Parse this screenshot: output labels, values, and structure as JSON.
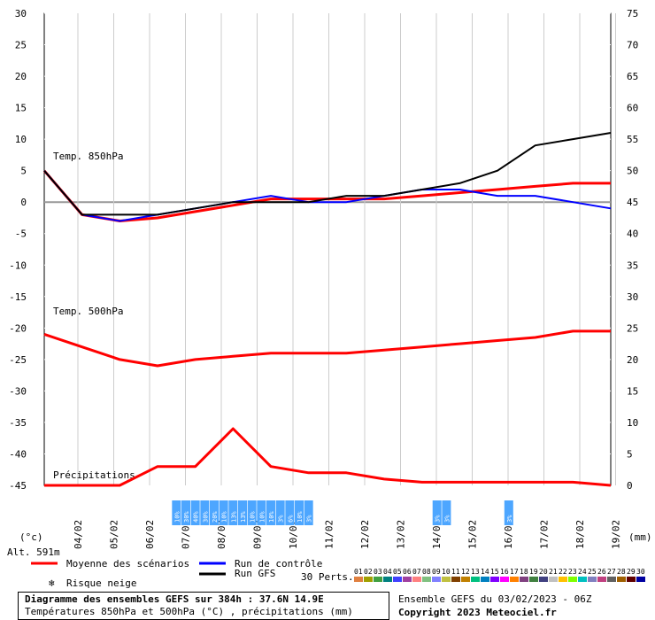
{
  "chart_data": {
    "type": "line",
    "title": "Diagramme des ensembles GEFS sur 384h : 37.6N 14.9E",
    "subtitle": "Températures 850hPa et 500hPa (°C) , précipitations (mm)",
    "run_info": "Ensemble GEFS du 03/02/2023 - 06Z",
    "copyright": "Copyright 2023 Meteociel.fr",
    "altitude": "Alt. 591m",
    "left_unit": "(°c)",
    "right_unit": "(mm)",
    "left_ticks": [
      "30",
      "25",
      "20",
      "15",
      "10",
      "5",
      "0",
      "-5",
      "-10",
      "-15",
      "-20",
      "-25",
      "-30",
      "-35",
      "-40",
      "-45"
    ],
    "right_ticks": [
      "75",
      "70",
      "65",
      "60",
      "55",
      "50",
      "45",
      "40",
      "35",
      "30",
      "25",
      "20",
      "15",
      "10",
      "5",
      "0"
    ],
    "ylim_temp": [
      -45,
      30
    ],
    "ylim_precip": [
      0,
      75
    ],
    "x_labels": [
      "04/02",
      "05/02",
      "06/02",
      "07/02",
      "08/02",
      "09/02",
      "10/02",
      "11/02",
      "12/02",
      "13/02",
      "14/02",
      "15/02",
      "16/02",
      "17/02",
      "18/02",
      "19/02"
    ],
    "section_labels": {
      "t850": "Temp. 850hPa",
      "t500": "Temp. 500hPa",
      "precip": "Précipitations"
    },
    "legend": {
      "mean": "Moyenne des scénarios",
      "control": "Run de contrôle",
      "gfs": "Run GFS",
      "snow": "Risque neige",
      "perts": "30 Perts.",
      "colors": {
        "mean": "#ff0000",
        "control": "#0000ff",
        "gfs": "#000000"
      }
    },
    "perturbation_numbers": [
      "01",
      "02",
      "03",
      "04",
      "05",
      "06",
      "07",
      "08",
      "09",
      "10",
      "11",
      "12",
      "13",
      "14",
      "15",
      "16",
      "17",
      "18",
      "19",
      "20",
      "21",
      "22",
      "23",
      "24",
      "25",
      "26",
      "27",
      "28",
      "29",
      "30"
    ],
    "perturbation_colors": [
      "#e08040",
      "#a0a000",
      "#40a040",
      "#008080",
      "#4040ff",
      "#a040a0",
      "#ff8080",
      "#80c080",
      "#8080ff",
      "#c0c040",
      "#804000",
      "#c08000",
      "#00c080",
      "#0080c0",
      "#8000ff",
      "#ff00ff",
      "#ff8000",
      "#804080",
      "#408040",
      "#404080",
      "#c0c0c0",
      "#ffc000",
      "#80ff00",
      "#00c0c0",
      "#8080c0",
      "#c04080",
      "#606060",
      "#a06000",
      "#600000",
      "#0000a0"
    ],
    "series": [
      {
        "name": "Temp. 850hPa - Moyenne des scénarios",
        "unit": "°C",
        "x": [
          0,
          1,
          2,
          3,
          4,
          5,
          6,
          7,
          8,
          9,
          10,
          11,
          12,
          13,
          14,
          15
        ],
        "values": [
          5,
          -2,
          -3,
          -2.5,
          -1.5,
          -0.5,
          0.5,
          0.5,
          0.5,
          0.5,
          1,
          1.5,
          2,
          2.5,
          3,
          3
        ]
      },
      {
        "name": "Temp. 500hPa - Moyenne des scénarios",
        "unit": "°C",
        "x": [
          0,
          1,
          2,
          3,
          4,
          5,
          6,
          7,
          8,
          9,
          10,
          11,
          12,
          13,
          14,
          15
        ],
        "values": [
          -21,
          -23,
          -25,
          -26,
          -25,
          -24.5,
          -24,
          -24,
          -24,
          -23.5,
          -23,
          -22.5,
          -22,
          -21.5,
          -20.5,
          -20.5
        ]
      },
      {
        "name": "Précipitations - Moyenne des scénarios",
        "unit": "mm",
        "x": [
          0,
          1,
          2,
          3,
          4,
          5,
          6,
          7,
          8,
          9,
          10,
          11,
          12,
          13,
          14,
          15
        ],
        "values": [
          0,
          0,
          0,
          3,
          3,
          9,
          3,
          2,
          2,
          1,
          0.5,
          0.5,
          0.5,
          0.5,
          0.5,
          0
        ]
      },
      {
        "name": "Temp. 850hPa - Run de contrôle",
        "unit": "°C",
        "x": [
          0,
          1,
          2,
          3,
          4,
          5,
          6,
          7,
          8,
          9,
          10,
          11,
          12,
          13,
          14,
          15
        ],
        "values": [
          5,
          -2,
          -3,
          -2,
          -1,
          0,
          1,
          0,
          0,
          1,
          2,
          2,
          1,
          1,
          0,
          -1
        ]
      },
      {
        "name": "Temp. 850hPa - Run GFS",
        "unit": "°C",
        "x": [
          0,
          1,
          2,
          3,
          4,
          5,
          6,
          7,
          8,
          9,
          10,
          11,
          12,
          13,
          14,
          15
        ],
        "values": [
          5,
          -2,
          -2,
          -2,
          -1,
          0,
          0,
          0,
          1,
          1,
          2,
          3,
          5,
          9,
          10,
          11
        ]
      }
    ],
    "snow_risk": [
      {
        "x": 3.5,
        "text": "10%"
      },
      {
        "x": 3.75,
        "text": "30%"
      },
      {
        "x": 4.0,
        "text": "40%"
      },
      {
        "x": 4.25,
        "text": "30%"
      },
      {
        "x": 4.5,
        "text": "20%"
      },
      {
        "x": 4.75,
        "text": "10%"
      },
      {
        "x": 5.0,
        "text": "13%"
      },
      {
        "x": 5.25,
        "text": "13%"
      },
      {
        "x": 5.5,
        "text": "10%"
      },
      {
        "x": 5.75,
        "text": "10%"
      },
      {
        "x": 6.0,
        "text": "10%"
      },
      {
        "x": 6.25,
        "text": "3%"
      },
      {
        "x": 6.5,
        "text": "6%"
      },
      {
        "x": 6.75,
        "text": "10%"
      },
      {
        "x": 7.0,
        "text": "3%"
      },
      {
        "x": 10.4,
        "text": "3%"
      },
      {
        "x": 10.65,
        "text": "3%"
      },
      {
        "x": 12.3,
        "text": "3%"
      }
    ]
  }
}
